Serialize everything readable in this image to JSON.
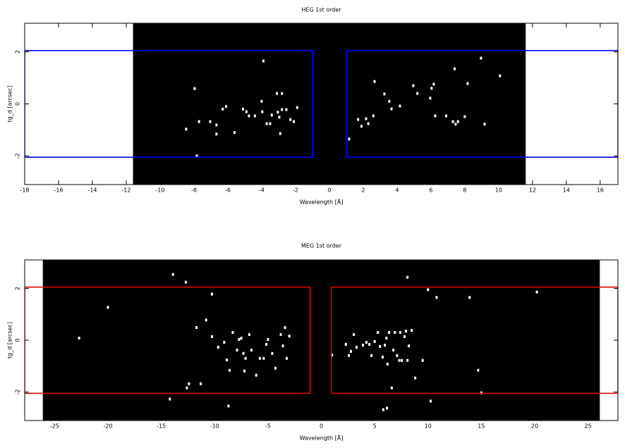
{
  "chart_data": [
    {
      "type": "scatter",
      "title": "HEG 1st order",
      "x_label": "Wavelength [Å]",
      "y_label": "tg_d [arcsec]",
      "xlim": [
        -18,
        17.05
      ],
      "ylim": [
        -3.1,
        3.1
      ],
      "xticks": [
        -18,
        -16,
        -14,
        -12,
        -10,
        -8,
        -6,
        -4,
        -2,
        0,
        2,
        4,
        6,
        8,
        10,
        12,
        14,
        16
      ],
      "yticks": [
        -2,
        0,
        2
      ],
      "background": {
        "xlim": [
          -11.6,
          11.6
        ],
        "color": "#000000"
      },
      "regions": [
        {
          "xlim": [
            -18,
            -1.0
          ],
          "ylim": [
            -2.05,
            2.05
          ]
        },
        {
          "xlim": [
            1.0,
            17.05
          ],
          "ylim": [
            -2.05,
            2.05
          ]
        }
      ],
      "region_color": "#0000ff",
      "color": "#ffffff",
      "x": [
        -3.9,
        -7.96,
        -8.46,
        -7.83,
        -7.7,
        -7.04,
        -6.67,
        -6.67,
        -6.1,
        -6.3,
        -5.6,
        -5.1,
        -4.9,
        -4.75,
        -4.4,
        -4.0,
        -3.96,
        -3.7,
        -3.5,
        -3.4,
        -3.1,
        -2.8,
        -3.04,
        -2.96,
        -2.9,
        -2.8,
        -2.54,
        -2.3,
        -2.1,
        -1.9,
        1.17,
        1.7,
        1.9,
        2.17,
        2.3,
        2.6,
        2.67,
        3.25,
        3.54,
        3.67,
        4.17,
        4.96,
        5.2,
        5.96,
        6.04,
        6.17,
        6.25,
        6.9,
        7.3,
        7.4,
        7.46,
        7.6,
        8.0,
        8.17,
        8.96,
        9.17,
        10.08
      ],
      "values": [
        1.65,
        0.59,
        -0.97,
        -2.0,
        -0.68,
        -0.68,
        -0.81,
        -1.16,
        -0.1,
        -0.2,
        -1.1,
        -0.2,
        -0.3,
        -0.46,
        -0.46,
        0.1,
        -0.3,
        -0.76,
        -0.76,
        -0.43,
        0.4,
        0.4,
        -0.32,
        -0.51,
        -1.14,
        -0.22,
        -0.22,
        -0.6,
        -0.68,
        -0.14,
        -1.35,
        -0.6,
        -0.86,
        -0.57,
        -0.76,
        -0.46,
        0.86,
        0.38,
        0.1,
        -0.19,
        -0.08,
        0.7,
        0.4,
        0.22,
        0.6,
        0.76,
        -0.46,
        -0.46,
        -0.68,
        1.35,
        -0.78,
        -0.68,
        -0.49,
        0.78,
        1.76,
        -0.78,
        1.08
      ]
    },
    {
      "type": "scatter",
      "title": "MEG 1st order",
      "x_label": "Wavelength [Å]",
      "y_label": "tg_d [arcsec]",
      "xlim": [
        -27.8,
        27.8
      ],
      "ylim": [
        -3.1,
        3.1
      ],
      "xticks": [
        -25,
        -20,
        -15,
        -10,
        -5,
        0,
        5,
        10,
        15,
        20,
        25
      ],
      "yticks": [
        -2,
        0,
        2
      ],
      "background": {
        "xlim": [
          -26.1,
          26.1
        ],
        "color": "#000000"
      },
      "regions": [
        {
          "xlim": [
            -27.8,
            -1.06
          ],
          "ylim": [
            -2.05,
            2.05
          ]
        },
        {
          "xlim": [
            0.93,
            27.8
          ],
          "ylim": [
            -2.05,
            2.05
          ]
        }
      ],
      "region_color": "#e00000",
      "color": "#ffffff",
      "x": [
        -22.7,
        -20.0,
        -13.9,
        -12.7,
        -10.25,
        -10.8,
        -11.7,
        -11.3,
        -12.4,
        -12.6,
        -14.2,
        -8.7,
        -10.25,
        -9.66,
        -9.1,
        -8.86,
        -8.6,
        -8.3,
        -7.9,
        -7.7,
        -7.5,
        -7.3,
        -7.1,
        -7.2,
        -6.75,
        -6.55,
        -6.1,
        -5.75,
        -5.4,
        -5.16,
        -5.0,
        -4.6,
        -4.3,
        -3.8,
        -3.6,
        -3.4,
        -3.24,
        -3.0,
        1.0,
        2.3,
        2.58,
        2.78,
        3.04,
        3.3,
        3.9,
        4.23,
        4.5,
        4.7,
        5.0,
        5.3,
        5.5,
        5.75,
        5.95,
        6.1,
        6.2,
        6.35,
        6.6,
        6.75,
        6.9,
        7.1,
        7.3,
        7.4,
        7.54,
        7.8,
        7.94,
        8.07,
        8.2,
        8.47,
        8.8,
        9.5,
        8.07,
        10.0,
        10.8,
        10.25,
        13.9,
        14.7,
        15.0,
        20.2,
        5.8,
        6.15
      ],
      "values": [
        0.08,
        1.27,
        2.54,
        2.24,
        1.78,
        0.78,
        0.49,
        -1.68,
        -1.68,
        -1.84,
        -2.27,
        -2.54,
        0.14,
        -0.27,
        -0.08,
        -0.76,
        -1.16,
        0.3,
        -0.38,
        0.03,
        0.08,
        -0.51,
        -0.7,
        -1.19,
        0.22,
        -0.38,
        -1.35,
        -0.7,
        -0.7,
        -0.16,
        0.03,
        -0.51,
        -1.08,
        0.22,
        -0.22,
        0.49,
        -0.7,
        0.16,
        -0.57,
        -0.16,
        -0.59,
        -0.43,
        0.22,
        -0.27,
        -0.19,
        -0.08,
        -0.16,
        -0.59,
        -0.05,
        0.3,
        -0.24,
        -0.65,
        -0.19,
        0.08,
        -0.92,
        0.3,
        -1.84,
        -0.38,
        0.3,
        -0.59,
        -0.78,
        0.3,
        -0.78,
        0.14,
        0.35,
        -0.78,
        -0.22,
        0.38,
        -1.46,
        -0.78,
        2.43,
        1.95,
        1.65,
        -2.35,
        1.65,
        -1.16,
        -2.03,
        1.86,
        -2.68,
        -2.62
      ]
    }
  ]
}
